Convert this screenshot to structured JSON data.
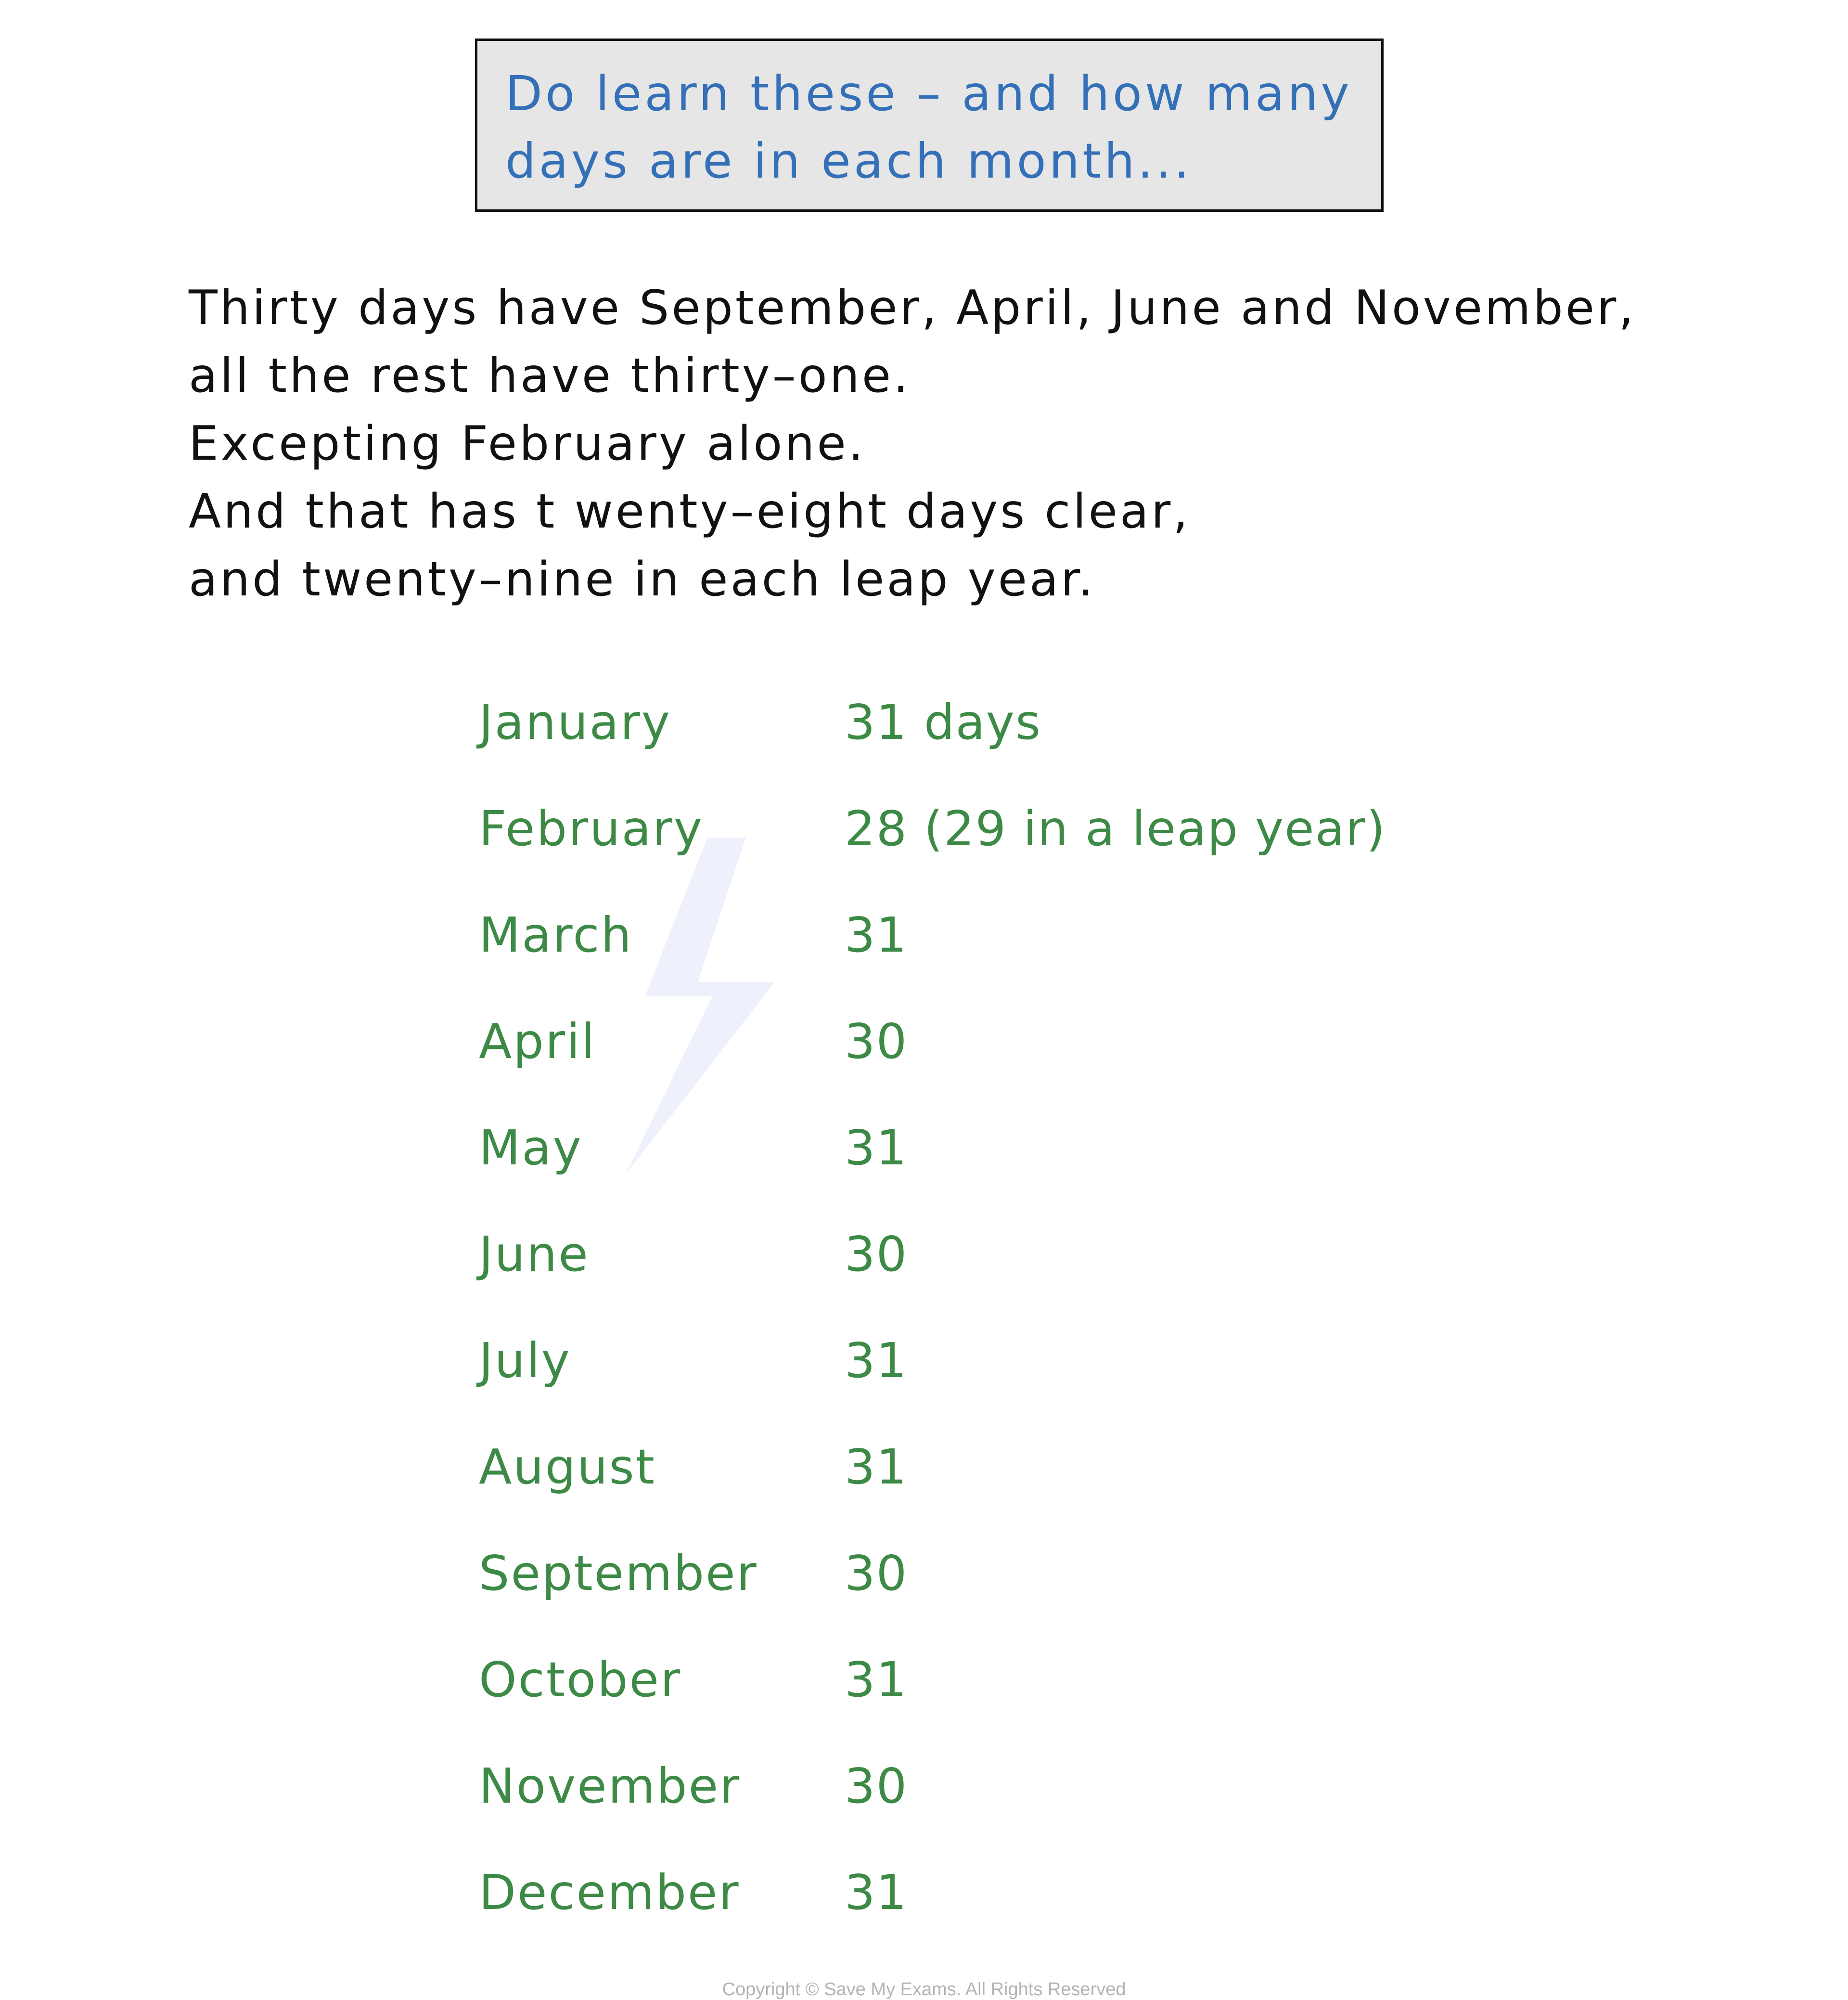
{
  "note": {
    "lines": [
      "Do learn these – and how many",
      "days are in each month..."
    ]
  },
  "poem": {
    "lines": [
      "Thirty days have September, April, June and November,",
      "all the rest have thirty–one.",
      "Excepting February alone.",
      "And that has t wenty–eight days clear,",
      "and twenty–nine in each leap year."
    ]
  },
  "months": [
    {
      "month": "January",
      "days": "31 days"
    },
    {
      "month": "February",
      "days": "28 (29 in a leap year)"
    },
    {
      "month": "March",
      "days": "31"
    },
    {
      "month": "April",
      "days": "30"
    },
    {
      "month": "May",
      "days": "31"
    },
    {
      "month": "June",
      "days": "30"
    },
    {
      "month": "July",
      "days": "31"
    },
    {
      "month": "August",
      "days": "31"
    },
    {
      "month": "September",
      "days": "30"
    },
    {
      "month": "October",
      "days": "31"
    },
    {
      "month": "November",
      "days": "30"
    },
    {
      "month": "December",
      "days": "31"
    }
  ],
  "watermark": {
    "text": "Save My Exams"
  },
  "footer": {
    "copyright": "Copyright © Save My Exams. All Rights Reserved"
  },
  "colors": {
    "note_text": "#3470b8",
    "note_bg": "#e6e6e6",
    "month_text": "#3d8a46"
  }
}
